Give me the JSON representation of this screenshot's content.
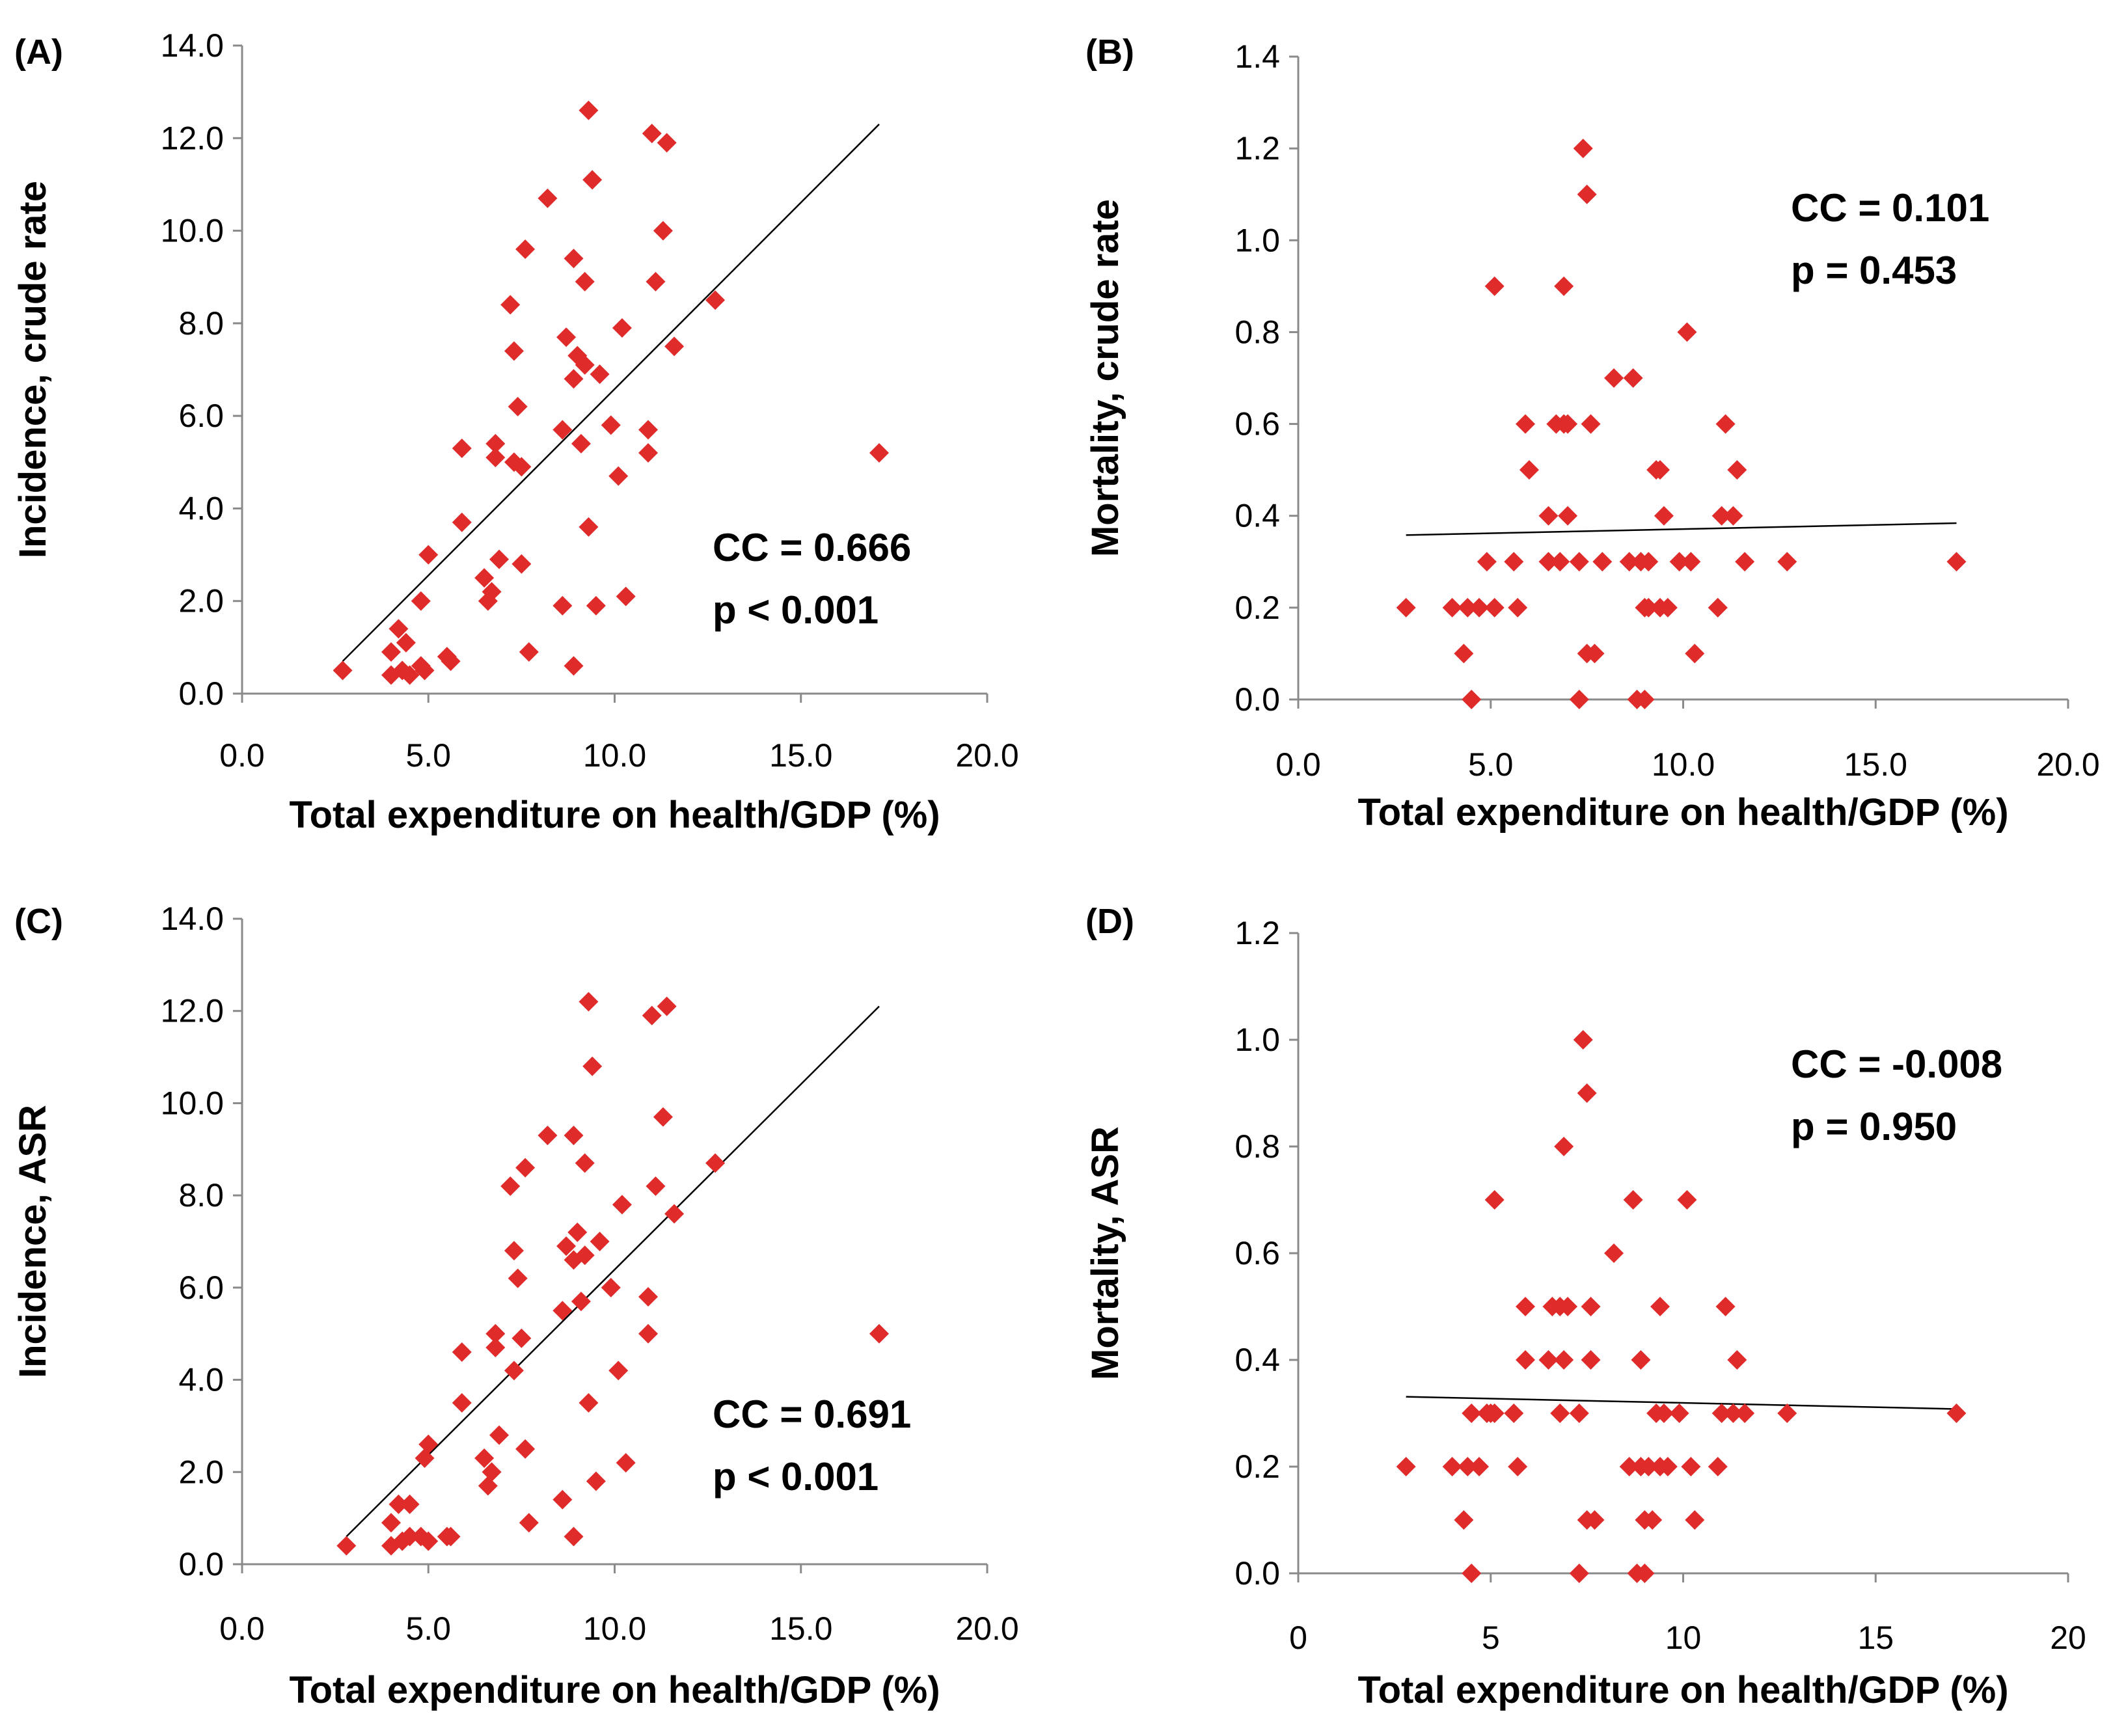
{
  "chart_data": [
    {
      "type": "scatter",
      "panel_label": "(A)",
      "xlabel": "Total expenditure on health/GDP (%)",
      "ylabel": "Incidence, crude rate",
      "xlim": [
        0,
        20
      ],
      "ylim": [
        0,
        14
      ],
      "xticks": [
        "0.0",
        "5.0",
        "10.0",
        "15.0",
        "20.0"
      ],
      "yticks": [
        "0.0",
        "2.0",
        "4.0",
        "6.0",
        "8.0",
        "10.0",
        "12.0",
        "14.0"
      ],
      "stat_cc": "CC = 0.666",
      "stat_p": "p < 0.001",
      "point_color": "#e02b2b",
      "trendline": {
        "x": [
          2.7,
          17.1
        ],
        "y": [
          0.7,
          12.3
        ]
      },
      "points": [
        [
          2.7,
          0.5
        ],
        [
          4.0,
          0.9
        ],
        [
          4.0,
          0.4
        ],
        [
          4.2,
          1.4
        ],
        [
          4.3,
          0.5
        ],
        [
          4.4,
          1.1
        ],
        [
          4.5,
          0.4
        ],
        [
          4.8,
          0.6
        ],
        [
          4.8,
          2.0
        ],
        [
          4.9,
          0.5
        ],
        [
          5.0,
          3.0
        ],
        [
          5.5,
          0.8
        ],
        [
          5.6,
          0.7
        ],
        [
          5.9,
          5.3
        ],
        [
          5.9,
          3.7
        ],
        [
          6.5,
          2.5
        ],
        [
          6.6,
          2.0
        ],
        [
          6.7,
          2.2
        ],
        [
          6.8,
          5.4
        ],
        [
          6.8,
          5.1
        ],
        [
          6.9,
          2.9
        ],
        [
          7.2,
          8.4
        ],
        [
          7.3,
          7.4
        ],
        [
          7.3,
          5.0
        ],
        [
          7.4,
          6.2
        ],
        [
          7.5,
          4.9
        ],
        [
          7.5,
          2.8
        ],
        [
          7.6,
          9.6
        ],
        [
          7.7,
          0.9
        ],
        [
          8.2,
          10.7
        ],
        [
          8.6,
          5.7
        ],
        [
          8.6,
          1.9
        ],
        [
          8.7,
          7.7
        ],
        [
          8.9,
          6.8
        ],
        [
          8.9,
          0.6
        ],
        [
          8.9,
          9.4
        ],
        [
          9.0,
          7.3
        ],
        [
          9.1,
          5.4
        ],
        [
          9.2,
          7.1
        ],
        [
          9.2,
          8.9
        ],
        [
          9.3,
          12.6
        ],
        [
          9.3,
          3.6
        ],
        [
          9.4,
          11.1
        ],
        [
          9.5,
          1.9
        ],
        [
          9.6,
          6.9
        ],
        [
          9.9,
          5.8
        ],
        [
          10.1,
          4.7
        ],
        [
          10.2,
          7.9
        ],
        [
          10.3,
          2.1
        ],
        [
          10.9,
          5.7
        ],
        [
          10.9,
          5.2
        ],
        [
          11.0,
          12.1
        ],
        [
          11.1,
          8.9
        ],
        [
          11.3,
          10.0
        ],
        [
          11.4,
          11.9
        ],
        [
          11.6,
          7.5
        ],
        [
          12.7,
          8.5
        ],
        [
          17.1,
          5.2
        ]
      ]
    },
    {
      "type": "scatter",
      "panel_label": "(B)",
      "xlabel": "Total expenditure on health/GDP (%)",
      "ylabel": "Mortality, crude rate",
      "xlim": [
        0,
        20
      ],
      "ylim": [
        0,
        1.4
      ],
      "xticks": [
        "0.0",
        "5.0",
        "10.0",
        "15.0",
        "20.0"
      ],
      "yticks": [
        "0.0",
        "0.2",
        "0.4",
        "0.6",
        "0.8",
        "1.0",
        "1.2",
        "1.4"
      ],
      "stat_cc": "CC = 0.101",
      "stat_p": "p = 0.453",
      "point_color": "#e02b2b",
      "trendline": {
        "x": [
          2.8,
          17.1
        ],
        "y": [
          0.358,
          0.384
        ]
      },
      "points": [
        [
          2.8,
          0.2
        ],
        [
          4.0,
          0.2
        ],
        [
          4.3,
          0.1
        ],
        [
          4.4,
          0.2
        ],
        [
          4.5,
          0.0
        ],
        [
          4.7,
          0.2
        ],
        [
          4.9,
          0.3
        ],
        [
          5.1,
          0.9
        ],
        [
          5.1,
          0.2
        ],
        [
          5.6,
          0.3
        ],
        [
          5.7,
          0.2
        ],
        [
          5.9,
          0.6
        ],
        [
          6.0,
          0.5
        ],
        [
          6.5,
          0.3
        ],
        [
          6.5,
          0.4
        ],
        [
          6.7,
          0.6
        ],
        [
          6.8,
          0.3
        ],
        [
          6.9,
          0.9
        ],
        [
          6.9,
          0.6
        ],
        [
          7.0,
          0.4
        ],
        [
          7.0,
          0.6
        ],
        [
          7.3,
          0.0
        ],
        [
          7.3,
          0.3
        ],
        [
          7.4,
          1.2
        ],
        [
          7.5,
          1.1
        ],
        [
          7.5,
          0.1
        ],
        [
          7.6,
          0.6
        ],
        [
          7.7,
          0.1
        ],
        [
          7.9,
          0.3
        ],
        [
          8.2,
          0.7
        ],
        [
          8.6,
          0.3
        ],
        [
          8.7,
          0.7
        ],
        [
          8.8,
          0.0
        ],
        [
          8.9,
          0.3
        ],
        [
          9.0,
          0.2
        ],
        [
          9.0,
          0.0
        ],
        [
          9.1,
          0.2
        ],
        [
          9.1,
          0.3
        ],
        [
          9.3,
          0.5
        ],
        [
          9.4,
          0.5
        ],
        [
          9.4,
          0.2
        ],
        [
          9.5,
          0.4
        ],
        [
          9.6,
          0.2
        ],
        [
          9.9,
          0.3
        ],
        [
          10.1,
          0.8
        ],
        [
          10.2,
          0.3
        ],
        [
          10.3,
          0.1
        ],
        [
          10.9,
          0.2
        ],
        [
          10.9,
          0.2
        ],
        [
          11.0,
          0.4
        ],
        [
          11.1,
          0.6
        ],
        [
          11.3,
          0.4
        ],
        [
          11.4,
          0.5
        ],
        [
          11.6,
          0.3
        ],
        [
          12.7,
          0.3
        ],
        [
          17.1,
          0.3
        ]
      ]
    },
    {
      "type": "scatter",
      "panel_label": "(C)",
      "xlabel": "Total expenditure on health/GDP (%)",
      "ylabel": "Incidence, ASR",
      "xlim": [
        0,
        20
      ],
      "ylim": [
        0,
        14
      ],
      "xticks": [
        "0.0",
        "5.0",
        "10.0",
        "15.0",
        "20.0"
      ],
      "yticks": [
        "0.0",
        "2.0",
        "4.0",
        "6.0",
        "8.0",
        "10.0",
        "12.0",
        "14.0"
      ],
      "stat_cc": "CC = 0.691",
      "stat_p": "p < 0.001",
      "point_color": "#e02b2b",
      "trendline": {
        "x": [
          2.8,
          17.1
        ],
        "y": [
          0.6,
          12.1
        ]
      },
      "points": [
        [
          2.8,
          0.4
        ],
        [
          4.0,
          0.9
        ],
        [
          4.0,
          0.4
        ],
        [
          4.2,
          1.3
        ],
        [
          4.3,
          0.5
        ],
        [
          4.5,
          1.3
        ],
        [
          4.5,
          0.6
        ],
        [
          4.8,
          0.6
        ],
        [
          4.9,
          2.3
        ],
        [
          5.0,
          2.6
        ],
        [
          5.0,
          0.5
        ],
        [
          5.5,
          0.6
        ],
        [
          5.6,
          0.6
        ],
        [
          5.9,
          4.6
        ],
        [
          5.9,
          3.5
        ],
        [
          6.5,
          2.3
        ],
        [
          6.6,
          1.7
        ],
        [
          6.7,
          2.0
        ],
        [
          6.8,
          5.0
        ],
        [
          6.8,
          4.7
        ],
        [
          6.9,
          2.8
        ],
        [
          7.2,
          8.2
        ],
        [
          7.3,
          6.8
        ],
        [
          7.3,
          4.2
        ],
        [
          7.4,
          6.2
        ],
        [
          7.5,
          4.9
        ],
        [
          7.6,
          2.5
        ],
        [
          7.6,
          8.6
        ],
        [
          7.7,
          0.9
        ],
        [
          8.2,
          9.3
        ],
        [
          8.6,
          5.5
        ],
        [
          8.6,
          1.4
        ],
        [
          8.7,
          6.9
        ],
        [
          8.9,
          6.6
        ],
        [
          8.9,
          0.6
        ],
        [
          8.9,
          9.3
        ],
        [
          9.0,
          7.2
        ],
        [
          9.1,
          5.7
        ],
        [
          9.2,
          6.7
        ],
        [
          9.2,
          8.7
        ],
        [
          9.3,
          12.2
        ],
        [
          9.3,
          3.5
        ],
        [
          9.4,
          10.8
        ],
        [
          9.5,
          1.8
        ],
        [
          9.6,
          7.0
        ],
        [
          9.9,
          6.0
        ],
        [
          10.1,
          4.2
        ],
        [
          10.2,
          7.8
        ],
        [
          10.3,
          2.2
        ],
        [
          10.9,
          5.8
        ],
        [
          10.9,
          5.0
        ],
        [
          11.0,
          11.9
        ],
        [
          11.1,
          8.2
        ],
        [
          11.3,
          9.7
        ],
        [
          11.4,
          12.1
        ],
        [
          11.6,
          7.6
        ],
        [
          12.7,
          8.7
        ],
        [
          17.1,
          5.0
        ]
      ]
    },
    {
      "type": "scatter",
      "panel_label": "(D)",
      "xlabel": "Total expenditure on health/GDP (%)",
      "ylabel": "Mortality, ASR",
      "xlim": [
        0,
        20
      ],
      "ylim": [
        0,
        1.2
      ],
      "xticks": [
        "0",
        "5",
        "10",
        "15",
        "20"
      ],
      "yticks": [
        "0.0",
        "0.2",
        "0.4",
        "0.6",
        "0.8",
        "1.0",
        "1.2"
      ],
      "stat_cc": "CC = -0.008",
      "stat_p": "p = 0.950",
      "point_color": "#e02b2b",
      "trendline": {
        "x": [
          2.8,
          17.1
        ],
        "y": [
          0.331,
          0.308
        ]
      },
      "points": [
        [
          2.8,
          0.2
        ],
        [
          4.0,
          0.2
        ],
        [
          4.3,
          0.1
        ],
        [
          4.4,
          0.2
        ],
        [
          4.5,
          0.0
        ],
        [
          4.5,
          0.3
        ],
        [
          4.7,
          0.2
        ],
        [
          4.9,
          0.3
        ],
        [
          5.0,
          0.3
        ],
        [
          5.1,
          0.7
        ],
        [
          5.1,
          0.3
        ],
        [
          5.6,
          0.3
        ],
        [
          5.7,
          0.2
        ],
        [
          5.9,
          0.5
        ],
        [
          5.9,
          0.4
        ],
        [
          6.5,
          0.4
        ],
        [
          6.6,
          0.5
        ],
        [
          6.8,
          0.5
        ],
        [
          6.8,
          0.3
        ],
        [
          6.9,
          0.8
        ],
        [
          6.9,
          0.4
        ],
        [
          7.0,
          0.5
        ],
        [
          7.3,
          0.0
        ],
        [
          7.3,
          0.3
        ],
        [
          7.4,
          1.0
        ],
        [
          7.5,
          0.9
        ],
        [
          7.5,
          0.1
        ],
        [
          7.6,
          0.5
        ],
        [
          7.6,
          0.4
        ],
        [
          7.7,
          0.1
        ],
        [
          8.2,
          0.6
        ],
        [
          8.6,
          0.2
        ],
        [
          8.7,
          0.7
        ],
        [
          8.8,
          0.0
        ],
        [
          8.9,
          0.4
        ],
        [
          8.9,
          0.2
        ],
        [
          9.0,
          0.1
        ],
        [
          9.0,
          0.0
        ],
        [
          9.1,
          0.2
        ],
        [
          9.2,
          0.1
        ],
        [
          9.3,
          0.3
        ],
        [
          9.4,
          0.5
        ],
        [
          9.4,
          0.2
        ],
        [
          9.5,
          0.3
        ],
        [
          9.6,
          0.2
        ],
        [
          9.9,
          0.3
        ],
        [
          10.1,
          0.7
        ],
        [
          10.2,
          0.2
        ],
        [
          10.3,
          0.1
        ],
        [
          10.9,
          0.2
        ],
        [
          11.0,
          0.3
        ],
        [
          11.1,
          0.5
        ],
        [
          11.3,
          0.3
        ],
        [
          11.4,
          0.4
        ],
        [
          11.6,
          0.3
        ],
        [
          12.7,
          0.3
        ],
        [
          17.1,
          0.3
        ]
      ]
    }
  ]
}
